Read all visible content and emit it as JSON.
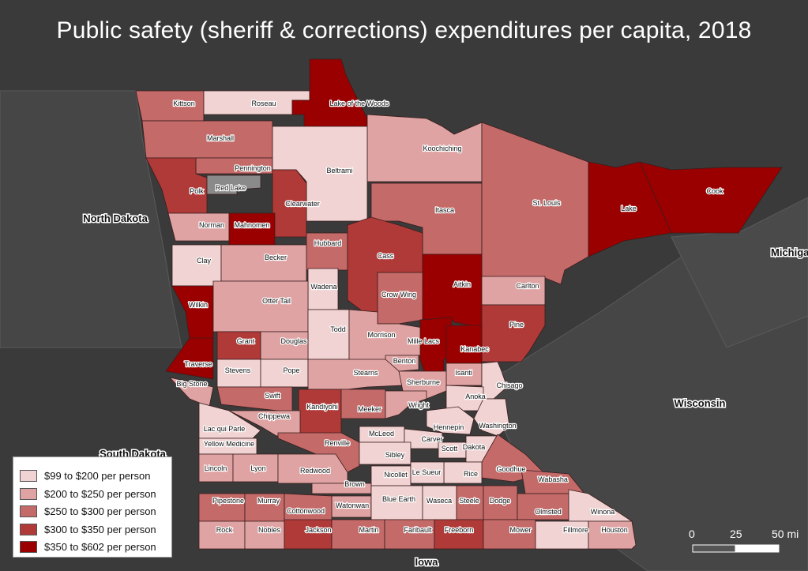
{
  "title": "Public safety (sheriff & corrections) expenditures per capita, 2018",
  "colors": {
    "background": "#3a3a3a",
    "neighbor": "#464646",
    "class1": "#f1d3d3",
    "class2": "#dfa3a3",
    "class3": "#c46a69",
    "class4": "#b03a38",
    "class5": "#9b0000",
    "no_data": "#8a8a8a"
  },
  "legend": {
    "items": [
      {
        "label": "$99 to $200 per person",
        "color": "#f1d3d3"
      },
      {
        "label": "$200 to $250 per person",
        "color": "#dfa3a3"
      },
      {
        "label": "$250 to $300 per person",
        "color": "#c46a69"
      },
      {
        "label": "$300 to $350 per person",
        "color": "#b03a38"
      },
      {
        "label": "$350 to $602 per person",
        "color": "#9b0000"
      }
    ]
  },
  "neighbors": {
    "north_dakota": "North Dakota",
    "south_dakota": "South Dakota",
    "wisconsin": "Wisconsin",
    "iowa": "Iowa",
    "michigan": "Michiga"
  },
  "scale": {
    "zero": "0",
    "mid": "25",
    "end": "50 mi"
  },
  "counties": [
    {
      "name": "Kittson",
      "cls": 3
    },
    {
      "name": "Roseau",
      "cls": 1
    },
    {
      "name": "Lake of the Woods",
      "cls": 5
    },
    {
      "name": "Marshall",
      "cls": 3
    },
    {
      "name": "Koochiching",
      "cls": 2
    },
    {
      "name": "Pennington",
      "cls": 3
    },
    {
      "name": "Beltrami",
      "cls": 1
    },
    {
      "name": "Polk",
      "cls": 4
    },
    {
      "name": "Red Lake",
      "cls": 0
    },
    {
      "name": "Clearwater",
      "cls": 4
    },
    {
      "name": "Itasca",
      "cls": 3
    },
    {
      "name": "St. Louis",
      "cls": 3
    },
    {
      "name": "Lake",
      "cls": 5
    },
    {
      "name": "Cook",
      "cls": 5
    },
    {
      "name": "Norman",
      "cls": 2
    },
    {
      "name": "Mahnomen",
      "cls": 5
    },
    {
      "name": "Hubbard",
      "cls": 3
    },
    {
      "name": "Cass",
      "cls": 4
    },
    {
      "name": "Clay",
      "cls": 1
    },
    {
      "name": "Becker",
      "cls": 2
    },
    {
      "name": "Aitkin",
      "cls": 5
    },
    {
      "name": "Carlton",
      "cls": 2
    },
    {
      "name": "Wadena",
      "cls": 1
    },
    {
      "name": "Crow Wing",
      "cls": 3
    },
    {
      "name": "Wilkin",
      "cls": 5
    },
    {
      "name": "Otter Tail",
      "cls": 2
    },
    {
      "name": "Pine",
      "cls": 4
    },
    {
      "name": "Todd",
      "cls": 1
    },
    {
      "name": "Morrison",
      "cls": 2
    },
    {
      "name": "Mille Lacs",
      "cls": 5
    },
    {
      "name": "Kanabec",
      "cls": 5
    },
    {
      "name": "Grant",
      "cls": 4
    },
    {
      "name": "Douglas",
      "cls": 2
    },
    {
      "name": "Traverse",
      "cls": 5
    },
    {
      "name": "Benton",
      "cls": 2
    },
    {
      "name": "Stevens",
      "cls": 1
    },
    {
      "name": "Pope",
      "cls": 1
    },
    {
      "name": "Stearns",
      "cls": 2
    },
    {
      "name": "Isanti",
      "cls": 2
    },
    {
      "name": "Chisago",
      "cls": 1
    },
    {
      "name": "Sherburne",
      "cls": 2
    },
    {
      "name": "Big Stone",
      "cls": 2
    },
    {
      "name": "Swift",
      "cls": 3
    },
    {
      "name": "Anoka",
      "cls": 1
    },
    {
      "name": "Kandiyohi",
      "cls": 4
    },
    {
      "name": "Meeker",
      "cls": 3
    },
    {
      "name": "Wright",
      "cls": 2
    },
    {
      "name": "Chippewa",
      "cls": 2
    },
    {
      "name": "Washington",
      "cls": 1
    },
    {
      "name": "Hennepin",
      "cls": 1
    },
    {
      "name": "Lac qui Parle",
      "cls": 1
    },
    {
      "name": "McLeod",
      "cls": 1
    },
    {
      "name": "Carver",
      "cls": 1
    },
    {
      "name": "Renville",
      "cls": 3
    },
    {
      "name": "Yellow Medicine",
      "cls": 1
    },
    {
      "name": "Scott",
      "cls": 1
    },
    {
      "name": "Dakota",
      "cls": 1
    },
    {
      "name": "Sibley",
      "cls": 1
    },
    {
      "name": "Goodhue",
      "cls": 3
    },
    {
      "name": "Lincoln",
      "cls": 2
    },
    {
      "name": "Lyon",
      "cls": 2
    },
    {
      "name": "Redwood",
      "cls": 2
    },
    {
      "name": "Rice",
      "cls": 1
    },
    {
      "name": "Nicollet",
      "cls": 1
    },
    {
      "name": "Le Sueur",
      "cls": 1
    },
    {
      "name": "Wabasha",
      "cls": 3
    },
    {
      "name": "Brown",
      "cls": 2
    },
    {
      "name": "Pipestone",
      "cls": 3
    },
    {
      "name": "Murray",
      "cls": 3
    },
    {
      "name": "Watonwan",
      "cls": 2
    },
    {
      "name": "Blue Earth",
      "cls": 1
    },
    {
      "name": "Waseca",
      "cls": 1
    },
    {
      "name": "Steele",
      "cls": 3
    },
    {
      "name": "Dodge",
      "cls": 3
    },
    {
      "name": "Olmsted",
      "cls": 3
    },
    {
      "name": "Winona",
      "cls": 1
    },
    {
      "name": "Cottonwood",
      "cls": 3
    },
    {
      "name": "Rock",
      "cls": 2
    },
    {
      "name": "Nobles",
      "cls": 2
    },
    {
      "name": "Jackson",
      "cls": 4
    },
    {
      "name": "Martin",
      "cls": 3
    },
    {
      "name": "Faribault",
      "cls": 3
    },
    {
      "name": "Freeborn",
      "cls": 4
    },
    {
      "name": "Mower",
      "cls": 3
    },
    {
      "name": "Fillmore",
      "cls": 1
    },
    {
      "name": "Houston",
      "cls": 2
    }
  ]
}
